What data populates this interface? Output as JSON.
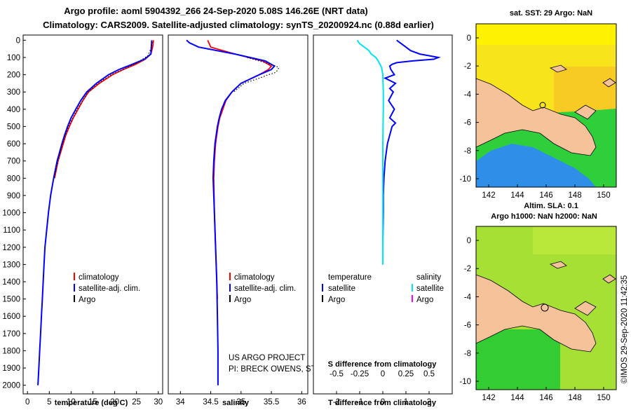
{
  "header": {
    "line1": "Argo profile: aoml 5904392_266 24-Sep-2020 5.08S 146.26E (NRT data)",
    "line2": "Climatology: CARS2009. Satellite-adjusted climatology: synTS_20200924.nc (0.88d earlier)"
  },
  "colors": {
    "climatology": "#ff0000",
    "satellite": "#0000ff",
    "argo": "#000000",
    "satellite_s": "#00e5ee",
    "argo_s": "#ff00ff",
    "land": "#f5c29a"
  },
  "depth_ticks": [
    "0",
    "100",
    "200",
    "300",
    "400",
    "500",
    "600",
    "700",
    "800",
    "900",
    "1000",
    "1100",
    "1200",
    "1300",
    "1400",
    "1500",
    "1600",
    "1700",
    "1800",
    "1900",
    "2000"
  ],
  "chart_data": [
    {
      "type": "line",
      "name": "temperature",
      "xlabel": "temperature (deg C)",
      "ylabel": "depth",
      "xlim": [
        -1,
        31
      ],
      "ylim": [
        2050,
        -30
      ],
      "xticks": [
        0,
        5,
        10,
        15,
        20,
        25,
        30
      ],
      "xtick_labels": [
        "0",
        "5",
        "10",
        "15",
        "20",
        "25",
        "30"
      ],
      "series": [
        {
          "name": "climatology",
          "depth": [
            0,
            40,
            80,
            110,
            140,
            170,
            200,
            250,
            300,
            350,
            400,
            450,
            500,
            550,
            600,
            700,
            800
          ],
          "values": [
            28.9,
            28.7,
            28.3,
            27.0,
            24.8,
            22.0,
            19.5,
            16.5,
            14.0,
            12.7,
            11.6,
            10.5,
            9.6,
            8.8,
            8.2,
            7.0,
            6.2
          ]
        },
        {
          "name": "satellite-adj. clim.",
          "depth": [
            0,
            40,
            80,
            110,
            140,
            170,
            200,
            250,
            300,
            350,
            400,
            450,
            500,
            550,
            600,
            700,
            800,
            900,
            1000,
            1100,
            1200,
            1300,
            1400,
            1500,
            1600,
            1700,
            1800,
            1900,
            2000
          ],
          "values": [
            28.5,
            28.4,
            28.3,
            26.8,
            24.0,
            21.0,
            18.6,
            15.8,
            13.6,
            12.2,
            11.1,
            10.0,
            9.2,
            8.5,
            7.9,
            6.8,
            6.0,
            5.3,
            4.8,
            4.4,
            4.0,
            3.8,
            3.6,
            3.4,
            3.2,
            3.0,
            2.8,
            2.6,
            2.4
          ]
        },
        {
          "name": "Argo",
          "depth": [
            10,
            50,
            90,
            130,
            150,
            175,
            200,
            250,
            300,
            400,
            500,
            600,
            700,
            800
          ],
          "values": [
            28.6,
            28.3,
            27.6,
            25.2,
            23.6,
            21.4,
            19.2,
            16.2,
            13.9,
            11.4,
            9.4,
            8.0,
            7.0,
            6.1
          ]
        }
      ],
      "legend": [
        "climatology",
        "satellite-adj. clim.",
        "Argo"
      ]
    },
    {
      "type": "line",
      "name": "salinity",
      "xlabel": "salinity",
      "ylabel": "depth",
      "xlim": [
        33.8,
        36.1
      ],
      "ylim": [
        2050,
        -30
      ],
      "xticks": [
        34,
        34.5,
        35,
        35.5,
        36
      ],
      "xtick_labels": [
        "34",
        "34.5",
        "35",
        "35.5",
        "36"
      ],
      "series": [
        {
          "name": "climatology",
          "depth": [
            0,
            40,
            80,
            120,
            150,
            170,
            200,
            250,
            300,
            350,
            400,
            450,
            500,
            600,
            700,
            800,
            1000,
            1200,
            1400,
            1500
          ],
          "values": [
            34.45,
            34.5,
            34.9,
            35.35,
            35.5,
            35.45,
            35.3,
            35.0,
            34.85,
            34.75,
            34.7,
            34.65,
            34.62,
            34.58,
            34.56,
            34.55,
            34.56,
            34.58,
            34.6,
            34.61
          ]
        },
        {
          "name": "satellite-adj. clim.",
          "depth": [
            0,
            15,
            40,
            80,
            120,
            150,
            170,
            200,
            250,
            300,
            350,
            400,
            450,
            500,
            600,
            700,
            800,
            900,
            1000,
            1200,
            1400,
            1600,
            1800,
            2000
          ],
          "values": [
            34.1,
            34.15,
            34.3,
            34.9,
            35.4,
            35.55,
            35.5,
            35.3,
            35.0,
            34.85,
            34.74,
            34.68,
            34.64,
            34.61,
            34.57,
            34.55,
            34.54,
            34.55,
            34.56,
            34.58,
            34.6,
            34.61,
            34.62,
            34.62
          ]
        },
        {
          "name": "Argo",
          "depth": [
            100,
            130,
            150,
            160,
            175,
            190,
            200,
            220,
            250,
            300
          ],
          "values": [
            35.1,
            35.4,
            35.58,
            35.62,
            35.6,
            35.55,
            35.45,
            35.3,
            35.05,
            34.88
          ]
        }
      ],
      "legend": [
        "climatology",
        "satellite-adj. clim.",
        "Argo"
      ],
      "annotation": [
        "US ARGO PROJECT",
        "PI: BRECK OWENS, STEVE JAYNE, P.E. ROBBINS"
      ]
    },
    {
      "type": "line",
      "name": "difference from climatology",
      "xlabel": "T difference from climatology",
      "top_xlabel": "S difference from climatology",
      "ylabel": "depth",
      "xlim": [
        -3,
        3
      ],
      "ylim": [
        2050,
        -30
      ],
      "xticks": [
        -2,
        -1,
        0,
        1,
        2
      ],
      "xtick_labels": [
        "-2",
        "-1",
        "0",
        "1",
        "2"
      ],
      "top_xtick_labels": [
        "-0.5",
        "-0.25",
        "0",
        "0.25",
        "0.5"
      ],
      "series": [
        {
          "name": "T satellite",
          "depth": [
            0,
            20,
            40,
            60,
            80,
            90,
            100,
            110,
            120,
            130,
            140,
            150,
            170,
            200,
            220,
            250,
            280,
            300,
            350,
            400,
            450,
            480,
            500,
            550,
            600,
            700,
            800,
            900,
            1000,
            1100,
            1200,
            1300
          ],
          "values": [
            0.6,
            0.8,
            1.0,
            1.2,
            1.6,
            2.0,
            2.4,
            2.2,
            1.3,
            0.6,
            0.4,
            0.3,
            0.35,
            0.5,
            0.1,
            0.55,
            0.3,
            0.45,
            0.25,
            0.5,
            0.3,
            0.55,
            0.4,
            0.3,
            0.2,
            0.1,
            0.05,
            0.02,
            0.02,
            0.01,
            0.0,
            0.0
          ]
        },
        {
          "name": "S satellite",
          "depth": [
            0,
            20,
            40,
            60,
            80,
            100,
            120,
            140,
            160,
            200,
            300,
            400,
            600,
            800,
            1000,
            1200,
            1300
          ],
          "values": [
            -1.1,
            -1.0,
            -0.8,
            -0.6,
            -0.5,
            -0.3,
            -0.2,
            -0.12,
            -0.05,
            0.0,
            0.02,
            0.02,
            0.0,
            0.0,
            0.0,
            0.0,
            0.0
          ]
        }
      ],
      "legend_temperature": [
        "satellite",
        "Argo"
      ],
      "legend_salinity": [
        "satellite",
        "Argo"
      ],
      "legend_headers": [
        "temperature",
        "salinity"
      ]
    }
  ],
  "maps": {
    "sst": {
      "title": "sat. SST: 29 Argo: NaN",
      "xticks": [
        "142",
        "144",
        "146",
        "148",
        "150"
      ],
      "yticks": [
        "0",
        "-2",
        "-4",
        "-6",
        "-8",
        "-10"
      ]
    },
    "sla": {
      "title1": "Altim. SLA: 0.1",
      "title2": "Argo h1000: NaN h2000: NaN",
      "xticks": [
        "142",
        "144",
        "146",
        "148",
        "150"
      ],
      "yticks": [
        "0",
        "-2",
        "-4",
        "-6",
        "-8",
        "-10"
      ]
    }
  },
  "credit": "©IMOS 29-Sep-2020 11:42:35"
}
